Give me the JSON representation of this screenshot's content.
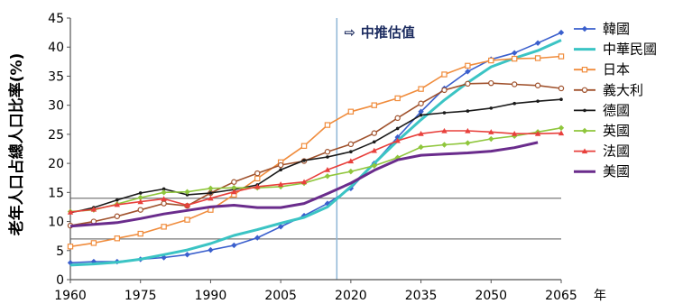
{
  "chart_data": {
    "type": "line",
    "ylabel": "老年人口占總人口比率(%)",
    "xlabel": "年",
    "annotation": "中推估值",
    "arrow_glyph": "⇨",
    "divider_x": 2017,
    "ref_lines": [
      7,
      14
    ],
    "ylim": [
      0,
      45
    ],
    "xlim": [
      1960,
      2065
    ],
    "x_ticks": [
      1960,
      1975,
      1990,
      2005,
      2020,
      2035,
      2050,
      2065
    ],
    "y_ticks": [
      0,
      5,
      10,
      15,
      20,
      25,
      30,
      35,
      40,
      45
    ],
    "legend_position": "right",
    "series": [
      {
        "name": "韓國",
        "color": "#3a5fcd",
        "marker": "diamond",
        "x": [
          1960,
          1965,
          1970,
          1975,
          1980,
          1985,
          1990,
          1995,
          2000,
          2005,
          2010,
          2015,
          2020,
          2025,
          2030,
          2035,
          2040,
          2045,
          2050,
          2055,
          2060,
          2065
        ],
        "y": [
          2.9,
          3.1,
          3.1,
          3.5,
          3.8,
          4.3,
          5.1,
          5.9,
          7.2,
          9.1,
          11.0,
          13.1,
          15.7,
          20.0,
          24.5,
          28.9,
          32.9,
          35.8,
          37.9,
          39.0,
          40.7,
          42.5
        ]
      },
      {
        "name": "中華民國",
        "color": "#3bc4c4",
        "marker": "none",
        "x": [
          1960,
          1965,
          1970,
          1975,
          1980,
          1985,
          1990,
          1995,
          2000,
          2005,
          2010,
          2015,
          2020,
          2025,
          2030,
          2035,
          2040,
          2045,
          2050,
          2055,
          2060,
          2065
        ],
        "y": [
          2.5,
          2.7,
          3.0,
          3.5,
          4.3,
          5.1,
          6.2,
          7.6,
          8.6,
          9.7,
          10.7,
          12.5,
          16.0,
          20.0,
          23.9,
          27.5,
          30.9,
          33.9,
          36.6,
          38.1,
          39.4,
          41.2
        ]
      },
      {
        "name": "日本",
        "color": "#f08c3c",
        "marker": "square-open",
        "x": [
          1960,
          1965,
          1970,
          1975,
          1980,
          1985,
          1990,
          1995,
          2000,
          2005,
          2010,
          2015,
          2020,
          2025,
          2030,
          2035,
          2040,
          2045,
          2050,
          2055,
          2060,
          2065
        ],
        "y": [
          5.7,
          6.3,
          7.1,
          7.9,
          9.1,
          10.3,
          12.0,
          14.6,
          17.4,
          20.2,
          23.0,
          26.6,
          28.9,
          30.0,
          31.2,
          32.8,
          35.3,
          36.8,
          37.7,
          38.0,
          38.1,
          38.4
        ]
      },
      {
        "name": "義大利",
        "color": "#a0522d",
        "marker": "circle-open",
        "x": [
          1960,
          1965,
          1970,
          1975,
          1980,
          1985,
          1990,
          1995,
          2000,
          2005,
          2010,
          2015,
          2020,
          2025,
          2030,
          2035,
          2040,
          2045,
          2050,
          2055,
          2060,
          2065
        ],
        "y": [
          9.3,
          10.0,
          10.9,
          12.0,
          13.1,
          12.7,
          14.9,
          16.8,
          18.3,
          19.7,
          20.4,
          22.0,
          23.3,
          25.2,
          27.8,
          30.3,
          32.6,
          33.7,
          33.8,
          33.6,
          33.4,
          32.9
        ]
      },
      {
        "name": "德國",
        "color": "#1a1a1a",
        "marker": "dot",
        "x": [
          1960,
          1965,
          1970,
          1975,
          1980,
          1985,
          1990,
          1995,
          2000,
          2005,
          2010,
          2015,
          2020,
          2025,
          2030,
          2035,
          2040,
          2045,
          2050,
          2055,
          2060,
          2065
        ],
        "y": [
          11.5,
          12.4,
          13.7,
          14.9,
          15.6,
          14.6,
          14.9,
          15.5,
          16.3,
          18.9,
          20.5,
          21.1,
          22.0,
          23.7,
          26.0,
          28.3,
          28.7,
          29.0,
          29.5,
          30.3,
          30.7,
          31.0
        ]
      },
      {
        "name": "英國",
        "color": "#8fc63c",
        "marker": "diamond",
        "x": [
          1960,
          1965,
          1970,
          1975,
          1980,
          1985,
          1990,
          1995,
          2000,
          2005,
          2010,
          2015,
          2020,
          2025,
          2030,
          2035,
          2040,
          2045,
          2050,
          2055,
          2060,
          2065
        ],
        "y": [
          11.7,
          12.0,
          13.0,
          14.1,
          15.0,
          15.1,
          15.7,
          15.8,
          15.8,
          16.0,
          16.6,
          17.8,
          18.6,
          19.6,
          21.0,
          22.8,
          23.2,
          23.5,
          24.2,
          24.7,
          25.4,
          26.1
        ]
      },
      {
        "name": "法國",
        "color": "#e8403c",
        "marker": "triangle",
        "x": [
          1960,
          1965,
          1970,
          1975,
          1980,
          1985,
          1990,
          1995,
          2000,
          2005,
          2010,
          2015,
          2020,
          2025,
          2030,
          2035,
          2040,
          2045,
          2050,
          2055,
          2060,
          2065
        ],
        "y": [
          11.6,
          12.1,
          12.9,
          13.4,
          13.9,
          12.8,
          14.0,
          15.1,
          16.0,
          16.4,
          16.8,
          18.9,
          20.4,
          22.2,
          23.9,
          25.1,
          25.6,
          25.6,
          25.4,
          25.1,
          25.1,
          25.2
        ]
      },
      {
        "name": "美國",
        "color": "#6a2c8c",
        "marker": "none",
        "x": [
          1960,
          1965,
          1970,
          1975,
          1980,
          1985,
          1990,
          1995,
          2000,
          2005,
          2010,
          2015,
          2020,
          2025,
          2030,
          2035,
          2040,
          2045,
          2050,
          2055,
          2060
        ],
        "y": [
          9.2,
          9.5,
          9.8,
          10.5,
          11.3,
          11.9,
          12.5,
          12.8,
          12.4,
          12.4,
          13.1,
          14.8,
          16.6,
          18.8,
          20.6,
          21.4,
          21.6,
          21.8,
          22.1,
          22.7,
          23.6
        ]
      }
    ]
  }
}
